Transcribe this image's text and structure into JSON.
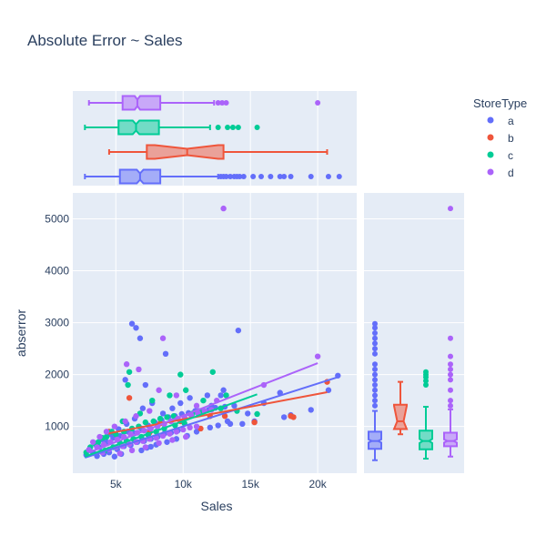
{
  "chart_data": {
    "type": "scatter",
    "title": "Absolute Error ~ Sales",
    "xlabel": "Sales",
    "ylabel": "abserror",
    "xlim": [
      1800,
      22900
    ],
    "ylim": [
      100,
      5500
    ],
    "x_ticks": [
      {
        "value": 5000,
        "label": "5k"
      },
      {
        "value": 10000,
        "label": "10k"
      },
      {
        "value": 15000,
        "label": "15k"
      },
      {
        "value": 20000,
        "label": "20k"
      }
    ],
    "y_ticks": [
      {
        "value": 1000,
        "label": "1000"
      },
      {
        "value": 2000,
        "label": "2000"
      },
      {
        "value": 3000,
        "label": "3000"
      },
      {
        "value": 4000,
        "label": "4000"
      },
      {
        "value": 5000,
        "label": "5000"
      }
    ],
    "legend": {
      "title": "StoreType",
      "placement": "right"
    },
    "series": [
      {
        "name": "a",
        "color": "#636efa",
        "trendline": [
          [
            2700,
            400
          ],
          [
            21500,
            1950
          ]
        ],
        "sales_box": {
          "min": 2700,
          "q1": 5300,
          "median": 6800,
          "q3": 8300,
          "max": 12600,
          "notch": [
            6550,
            7050
          ],
          "outliers": [
            12800,
            13000,
            13200,
            13500,
            13800,
            14000,
            14200,
            14500,
            15200,
            15800,
            16500,
            17200,
            17500,
            18000,
            19500,
            20800,
            21600
          ]
        },
        "error_box": {
          "min": 350,
          "q1": 570,
          "median": 720,
          "q3": 900,
          "max": 1300,
          "notch": [
            690,
            750
          ],
          "outliers": [
            1400,
            1500,
            1600,
            1700,
            1800,
            1900,
            2000,
            2100,
            2200,
            2400,
            2500,
            2600,
            2700,
            2800,
            2900,
            2980
          ]
        },
        "points": [
          [
            6200,
            2980
          ],
          [
            14100,
            2850
          ],
          [
            6500,
            2900
          ],
          [
            8700,
            2400
          ],
          [
            6800,
            2700
          ],
          [
            5700,
            1900
          ],
          [
            7200,
            1800
          ],
          [
            13000,
            1700
          ],
          [
            11800,
            1600
          ],
          [
            17200,
            1650
          ],
          [
            19500,
            1320
          ],
          [
            21500,
            1980
          ],
          [
            20800,
            1700
          ],
          [
            18000,
            1220
          ],
          [
            17500,
            1180
          ],
          [
            16000,
            1450
          ],
          [
            14800,
            1250
          ],
          [
            13500,
            1050
          ],
          [
            12800,
            1600
          ],
          [
            12100,
            1400
          ],
          [
            11200,
            1300
          ],
          [
            10500,
            1550
          ],
          [
            9800,
            1450
          ],
          [
            9200,
            1350
          ],
          [
            8500,
            1250
          ],
          [
            7700,
            1450
          ],
          [
            7000,
            1350
          ],
          [
            6400,
            1150
          ],
          [
            5800,
            1050
          ],
          [
            5200,
            950
          ],
          [
            4600,
            850
          ],
          [
            4000,
            750
          ],
          [
            3500,
            650
          ],
          [
            3000,
            550
          ],
          [
            2800,
            450
          ],
          [
            3300,
            500
          ],
          [
            3800,
            600
          ],
          [
            4300,
            700
          ],
          [
            4800,
            780
          ],
          [
            5300,
            820
          ],
          [
            5900,
            900
          ],
          [
            6400,
            870
          ],
          [
            6900,
            960
          ],
          [
            7400,
            1020
          ],
          [
            7900,
            1080
          ],
          [
            8400,
            1120
          ],
          [
            8900,
            1180
          ],
          [
            9400,
            1200
          ],
          [
            9900,
            1240
          ],
          [
            10400,
            1260
          ],
          [
            10900,
            1300
          ],
          [
            11400,
            1280
          ],
          [
            11900,
            1320
          ],
          [
            12400,
            1360
          ],
          [
            13100,
            1380
          ],
          [
            13800,
            1400
          ],
          [
            14400,
            1050
          ],
          [
            15300,
            1100
          ],
          [
            4500,
            500
          ],
          [
            5100,
            560
          ],
          [
            5600,
            620
          ],
          [
            6100,
            640
          ],
          [
            6600,
            700
          ],
          [
            7100,
            720
          ],
          [
            7600,
            760
          ],
          [
            8100,
            800
          ],
          [
            8600,
            860
          ],
          [
            9100,
            880
          ],
          [
            9600,
            920
          ],
          [
            3600,
            430
          ],
          [
            4100,
            470
          ],
          [
            5000,
            600
          ],
          [
            7300,
            590
          ],
          [
            8000,
            650
          ],
          [
            8800,
            700
          ],
          [
            9500,
            760
          ],
          [
            10300,
            820
          ],
          [
            11000,
            900
          ],
          [
            12000,
            980
          ],
          [
            12600,
            1020
          ],
          [
            13300,
            1100
          ],
          [
            6900,
            540
          ],
          [
            7600,
            610
          ],
          [
            4900,
            420
          ],
          [
            5400,
            470
          ]
        ]
      },
      {
        "name": "b",
        "color": "#ef553b",
        "trendline": [
          [
            4500,
            870
          ],
          [
            20700,
            1660
          ]
        ],
        "sales_box": {
          "min": 4500,
          "q1": 7300,
          "median": 10300,
          "q3": 13000,
          "max": 20700,
          "notch": [
            7900,
            12600
          ],
          "outliers": []
        },
        "error_box": {
          "min": 850,
          "q1": 950,
          "median": 1100,
          "q3": 1420,
          "max": 1860,
          "notch": [
            950,
            1400
          ],
          "outliers": []
        },
        "points": [
          [
            4500,
            900
          ],
          [
            6000,
            1550
          ],
          [
            8300,
            1060
          ],
          [
            9800,
            1100
          ],
          [
            12000,
            1200
          ],
          [
            13100,
            1200
          ],
          [
            15300,
            1080
          ],
          [
            18000,
            1200
          ],
          [
            18200,
            1180
          ],
          [
            20700,
            1860
          ],
          [
            11300,
            960
          ],
          [
            7500,
            880
          ]
        ]
      },
      {
        "name": "c",
        "color": "#00cc96",
        "trendline": [
          [
            2700,
            420
          ],
          [
            15500,
            1620
          ]
        ],
        "sales_box": {
          "min": 2700,
          "q1": 5200,
          "median": 6500,
          "q3": 8200,
          "max": 12000,
          "notch": [
            6250,
            6750
          ],
          "outliers": [
            12600,
            13300,
            13700,
            14100,
            15500
          ]
        },
        "error_box": {
          "min": 380,
          "q1": 560,
          "median": 720,
          "q3": 920,
          "max": 1380,
          "notch": [
            680,
            760
          ],
          "outliers": [
            1800,
            1880,
            1950,
            2000,
            2050
          ]
        },
        "points": [
          [
            6000,
            2050
          ],
          [
            9800,
            2000
          ],
          [
            12200,
            2050
          ],
          [
            5900,
            1800
          ],
          [
            10200,
            1700
          ],
          [
            13200,
            1600
          ],
          [
            15500,
            1240
          ],
          [
            14000,
            1300
          ],
          [
            11500,
            1500
          ],
          [
            9000,
            1600
          ],
          [
            7700,
            1500
          ],
          [
            6800,
            1250
          ],
          [
            5500,
            1100
          ],
          [
            4700,
            900
          ],
          [
            4000,
            780
          ],
          [
            3400,
            680
          ],
          [
            2800,
            500
          ],
          [
            3100,
            600
          ],
          [
            3700,
            700
          ],
          [
            4300,
            800
          ],
          [
            5000,
            850
          ],
          [
            5600,
            900
          ],
          [
            6200,
            960
          ],
          [
            6700,
            1000
          ],
          [
            7200,
            1080
          ],
          [
            7800,
            1100
          ],
          [
            8300,
            1150
          ],
          [
            8800,
            1180
          ],
          [
            9300,
            1200
          ],
          [
            10700,
            1250
          ],
          [
            11200,
            1280
          ],
          [
            12800,
            1350
          ],
          [
            4200,
            540
          ],
          [
            4800,
            600
          ],
          [
            5300,
            680
          ],
          [
            5800,
            720
          ],
          [
            6300,
            760
          ],
          [
            6900,
            800
          ],
          [
            7400,
            840
          ],
          [
            8000,
            900
          ],
          [
            8600,
            960
          ],
          [
            9400,
            1020
          ],
          [
            10100,
            1060
          ]
        ]
      },
      {
        "name": "d",
        "color": "#ab63fa",
        "trendline": [
          [
            3000,
            500
          ],
          [
            20000,
            2220
          ]
        ],
        "sales_box": {
          "min": 3000,
          "q1": 5500,
          "median": 6600,
          "q3": 8300,
          "max": 12300,
          "notch": [
            6400,
            6800
          ],
          "outliers": [
            12600,
            12900,
            13200,
            20000
          ]
        },
        "error_box": {
          "min": 420,
          "q1": 620,
          "median": 720,
          "q3": 880,
          "max": 1330,
          "notch": [
            690,
            750
          ],
          "outliers": [
            1400,
            1500,
            1700,
            1900,
            2000,
            2100,
            2200,
            2350,
            2700,
            5200
          ]
        },
        "points": [
          [
            13000,
            5200
          ],
          [
            8500,
            2700
          ],
          [
            20000,
            2350
          ],
          [
            6700,
            2100
          ],
          [
            5800,
            2200
          ],
          [
            16000,
            1800
          ],
          [
            9500,
            1600
          ],
          [
            8200,
            1700
          ],
          [
            11000,
            1400
          ],
          [
            12500,
            1500
          ],
          [
            7500,
            1300
          ],
          [
            6500,
            1200
          ],
          [
            5700,
            1100
          ],
          [
            4900,
            1000
          ],
          [
            4300,
            900
          ],
          [
            3800,
            800
          ],
          [
            3300,
            700
          ],
          [
            3000,
            550
          ],
          [
            3600,
            600
          ],
          [
            4100,
            650
          ],
          [
            4600,
            700
          ],
          [
            5100,
            750
          ],
          [
            5600,
            800
          ],
          [
            6100,
            850
          ],
          [
            6600,
            880
          ],
          [
            7100,
            920
          ],
          [
            7600,
            960
          ],
          [
            8100,
            1000
          ],
          [
            8600,
            1050
          ],
          [
            9100,
            1100
          ],
          [
            9600,
            1150
          ],
          [
            10100,
            1180
          ],
          [
            10600,
            1220
          ],
          [
            11100,
            1260
          ],
          [
            11600,
            1300
          ],
          [
            12100,
            1320
          ],
          [
            4000,
            500
          ],
          [
            4500,
            560
          ],
          [
            5000,
            600
          ],
          [
            5500,
            620
          ],
          [
            6000,
            660
          ],
          [
            6500,
            700
          ],
          [
            7000,
            720
          ],
          [
            7500,
            760
          ],
          [
            8000,
            780
          ],
          [
            8500,
            820
          ],
          [
            9000,
            860
          ],
          [
            9500,
            900
          ],
          [
            10000,
            940
          ],
          [
            10500,
            980
          ],
          [
            11000,
            1000
          ],
          [
            5300,
            480
          ],
          [
            6200,
            540
          ],
          [
            7200,
            600
          ],
          [
            8200,
            680
          ],
          [
            9200,
            740
          ],
          [
            10200,
            800
          ]
        ]
      }
    ]
  }
}
